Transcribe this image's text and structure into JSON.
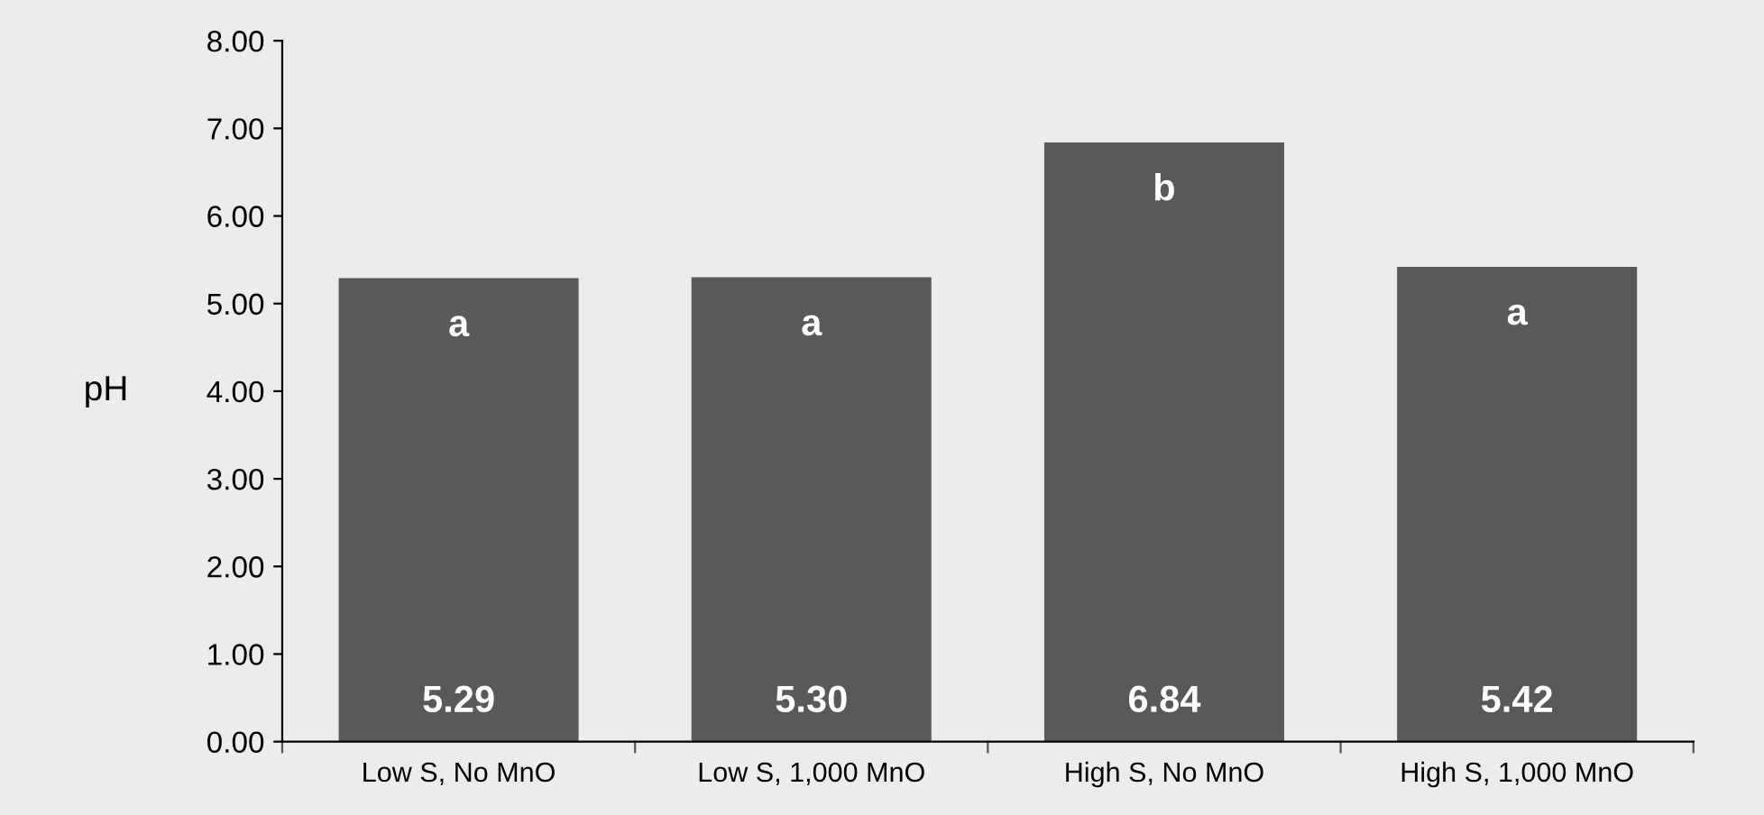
{
  "chart_data": {
    "type": "bar",
    "ylabel": "pH",
    "categories": [
      "Low S, No MnO",
      "Low S, 1,000 MnO",
      "High S, No MnO",
      "High S, 1,000 MnO"
    ],
    "values": [
      5.29,
      5.3,
      6.84,
      5.42
    ],
    "value_labels": [
      "5.29",
      "5.30",
      "6.84",
      "5.42"
    ],
    "color": "#595959",
    "ylim": [
      0,
      8
    ],
    "yticks": [
      {
        "value": 0,
        "label": "0.00"
      },
      {
        "value": 1,
        "label": "1.00"
      },
      {
        "value": 2,
        "label": "2.00"
      },
      {
        "value": 3,
        "label": "3.00"
      },
      {
        "value": 4,
        "label": "4.00"
      },
      {
        "value": 5,
        "label": "5.00"
      },
      {
        "value": 6,
        "label": "6.00"
      },
      {
        "value": 7,
        "label": "7.00"
      },
      {
        "value": 8,
        "label": "8.00"
      }
    ],
    "grid": false,
    "annotations": [
      "a",
      "a",
      "b",
      "a"
    ]
  }
}
